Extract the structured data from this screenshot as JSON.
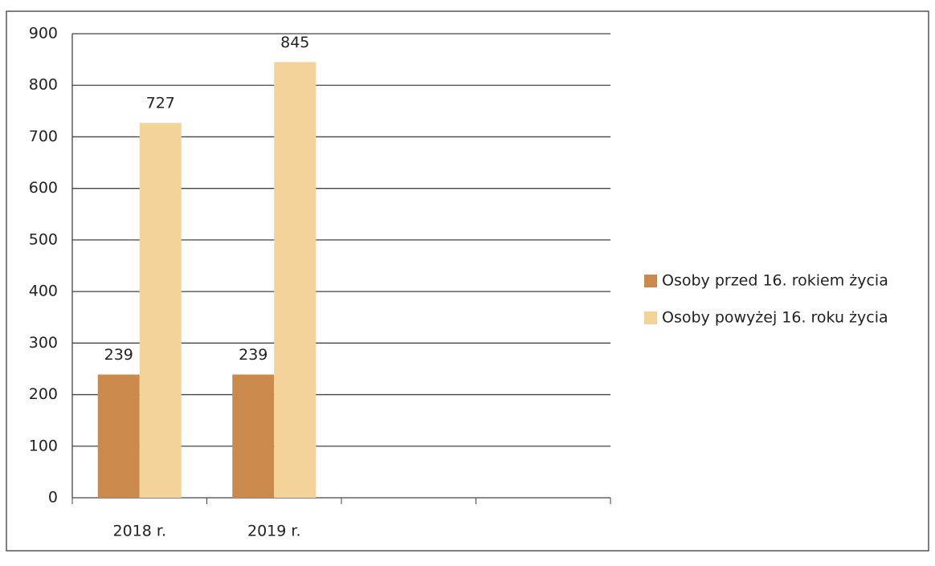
{
  "chart_data": {
    "type": "bar",
    "categories": [
      "2018 r.",
      "2019 r.",
      null,
      null
    ],
    "series": [
      {
        "name": "Osoby przed 16. rokiem życia",
        "color": "#c98a4b",
        "values": [
          239,
          239,
          null,
          null
        ]
      },
      {
        "name": "Osoby powyżej 16. roku życia",
        "color": "#f4d39b",
        "values": [
          727,
          845,
          null,
          null
        ]
      }
    ],
    "ylim": [
      0,
      900
    ],
    "yticks": [
      0,
      100,
      200,
      300,
      400,
      500,
      600,
      700,
      800,
      900
    ],
    "grid": true,
    "legend": "right",
    "data_labels": true
  }
}
